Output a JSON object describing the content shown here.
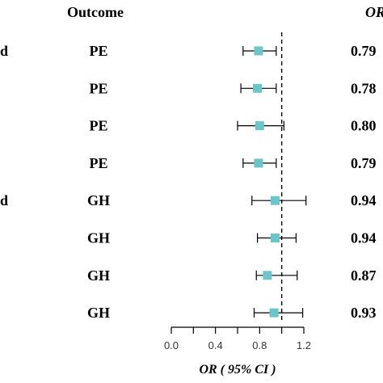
{
  "header": {
    "left_fragment": "",
    "outcome": "Outcome",
    "or_fragment": "OR"
  },
  "rows": [
    {
      "left": "d",
      "outcome": "PE",
      "or_text": "0.79"
    },
    {
      "left": "",
      "outcome": "PE",
      "or_text": "0.78"
    },
    {
      "left": "",
      "outcome": "PE",
      "or_text": "0.80"
    },
    {
      "left": "",
      "outcome": "PE",
      "or_text": "0.79"
    },
    {
      "left": "d",
      "outcome": "GH",
      "or_text": "0.94"
    },
    {
      "left": "",
      "outcome": "GH",
      "or_text": "0.94"
    },
    {
      "left": "",
      "outcome": "GH",
      "or_text": "0.87"
    },
    {
      "left": "",
      "outcome": "GH",
      "or_text": "0.93"
    }
  ],
  "chart_data": {
    "type": "forest",
    "xlabel": "OR ( 95% CI )",
    "xlim": [
      0.0,
      1.2
    ],
    "xticks": [
      "0.0",
      "0.4",
      "0.8",
      "1.2"
    ],
    "reference_line": 1.0,
    "marker_color": "#6cc5c8",
    "points": [
      {
        "or": 0.79,
        "lo": 0.65,
        "hi": 0.95
      },
      {
        "or": 0.78,
        "lo": 0.63,
        "hi": 0.95
      },
      {
        "or": 0.8,
        "lo": 0.6,
        "hi": 1.02
      },
      {
        "or": 0.79,
        "lo": 0.65,
        "hi": 0.95
      },
      {
        "or": 0.94,
        "lo": 0.73,
        "hi": 1.22
      },
      {
        "or": 0.94,
        "lo": 0.78,
        "hi": 1.13
      },
      {
        "or": 0.87,
        "lo": 0.77,
        "hi": 1.14
      },
      {
        "or": 0.93,
        "lo": 0.75,
        "hi": 1.19
      }
    ]
  }
}
